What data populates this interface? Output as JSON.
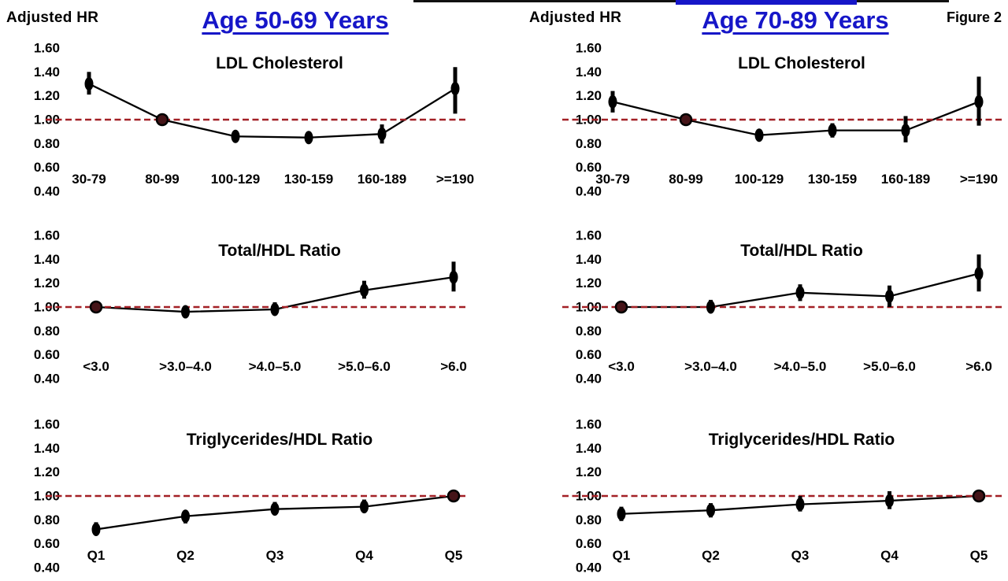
{
  "figure_label": "Figure 2",
  "y_axis": {
    "label": "Adjusted HR",
    "ticks": [
      "1.60",
      "1.40",
      "1.20",
      "1.00",
      "0.80",
      "0.60",
      "0.40"
    ],
    "range": [
      0.4,
      1.6
    ],
    "reference_line": 1.0
  },
  "columns": [
    {
      "title": "Age 50-69 Years"
    },
    {
      "title": "Age 70-89 Years"
    }
  ],
  "colors": {
    "title_blue": "#1616c8",
    "reference_line_red": "#a32026",
    "reference_dot_maroon": "#451418",
    "point_black": "#000000",
    "background": "#ffffff"
  },
  "chart_data": [
    {
      "type": "line",
      "age_group": "Age 50-69 Years",
      "title": "LDL Cholesterol",
      "categories": [
        "30-79",
        "80-99",
        "100-129",
        "130-159",
        "160-189",
        ">=190"
      ],
      "values": [
        1.3,
        1.0,
        0.86,
        0.85,
        0.88,
        1.26
      ],
      "ci_low": [
        1.21,
        null,
        0.82,
        0.8,
        0.8,
        1.05
      ],
      "ci_high": [
        1.4,
        null,
        0.9,
        0.9,
        0.96,
        1.44
      ],
      "reference_index": 1,
      "ylabel": "Adjusted HR",
      "ylim": [
        0.4,
        1.6
      ],
      "ref_line": 1.0,
      "grid": false
    },
    {
      "type": "line",
      "age_group": "Age 70-89 Years",
      "title": "LDL Cholesterol",
      "categories": [
        "30-79",
        "80-99",
        "100-129",
        "130-159",
        "160-189",
        ">=190"
      ],
      "values": [
        1.15,
        1.0,
        0.87,
        0.91,
        0.91,
        1.15
      ],
      "ci_low": [
        1.06,
        null,
        0.83,
        0.85,
        0.81,
        0.95
      ],
      "ci_high": [
        1.24,
        null,
        0.92,
        0.97,
        1.03,
        1.36
      ],
      "reference_index": 1,
      "ylabel": "Adjusted HR",
      "ylim": [
        0.4,
        1.6
      ],
      "ref_line": 1.0,
      "grid": false
    },
    {
      "type": "line",
      "age_group": "Age 50-69 Years",
      "title": "Total/HDL Ratio",
      "categories": [
        "<3.0",
        ">3.0–4.0",
        ">4.0–5.0",
        ">5.0–6.0",
        ">6.0"
      ],
      "values": [
        1.0,
        0.96,
        0.98,
        1.14,
        1.25
      ],
      "ci_low": [
        null,
        0.91,
        0.93,
        1.07,
        1.13
      ],
      "ci_high": [
        null,
        1.01,
        1.04,
        1.22,
        1.38
      ],
      "reference_index": 0,
      "ylabel": "Adjusted HR",
      "ylim": [
        0.4,
        1.6
      ],
      "ref_line": 1.0,
      "grid": false
    },
    {
      "type": "line",
      "age_group": "Age 70-89 Years",
      "title": "Total/HDL Ratio",
      "categories": [
        "<3.0",
        ">3.0–4.0",
        ">4.0–5.0",
        ">5.0–6.0",
        ">6.0"
      ],
      "values": [
        1.0,
        1.0,
        1.12,
        1.09,
        1.28
      ],
      "ci_low": [
        null,
        0.95,
        1.05,
        1.0,
        1.13
      ],
      "ci_high": [
        null,
        1.06,
        1.19,
        1.18,
        1.44
      ],
      "reference_index": 0,
      "ylabel": "Adjusted HR",
      "ylim": [
        0.4,
        1.6
      ],
      "ref_line": 1.0,
      "grid": false
    },
    {
      "type": "line",
      "age_group": "Age 50-69 Years",
      "title": "Triglycerides/HDL Ratio",
      "categories": [
        "Q1",
        "Q2",
        "Q3",
        "Q4",
        "Q5"
      ],
      "values": [
        0.72,
        0.83,
        0.89,
        0.91,
        1.0
      ],
      "ci_low": [
        0.67,
        0.77,
        0.84,
        0.86,
        null
      ],
      "ci_high": [
        0.78,
        0.88,
        0.95,
        0.97,
        null
      ],
      "reference_index": 4,
      "ylabel": "Adjusted HR",
      "ylim": [
        0.4,
        1.6
      ],
      "ref_line": 1.0,
      "grid": false
    },
    {
      "type": "line",
      "age_group": "Age 70-89 Years",
      "title": "Triglycerides/HDL Ratio",
      "categories": [
        "Q1",
        "Q2",
        "Q3",
        "Q4",
        "Q5"
      ],
      "values": [
        0.85,
        0.88,
        0.93,
        0.96,
        1.0
      ],
      "ci_low": [
        0.79,
        0.82,
        0.87,
        0.89,
        null
      ],
      "ci_high": [
        0.91,
        0.94,
        1.0,
        1.04,
        null
      ],
      "reference_index": 4,
      "ylabel": "Adjusted HR",
      "ylim": [
        0.4,
        1.6
      ],
      "ref_line": 1.0,
      "grid": false
    }
  ]
}
